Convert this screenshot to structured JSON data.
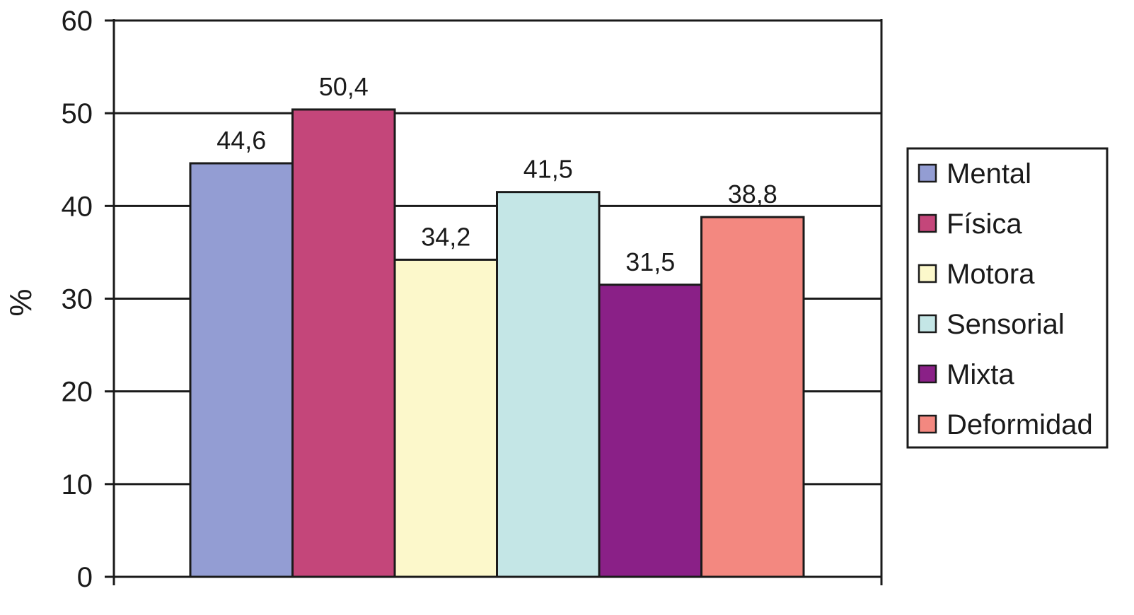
{
  "chart_data": {
    "type": "bar",
    "title": "",
    "xlabel": "",
    "ylabel": "%",
    "ylim": [
      0,
      60
    ],
    "yticks": [
      0,
      10,
      20,
      30,
      40,
      50,
      60
    ],
    "grid": true,
    "legend_position": "right",
    "series": [
      {
        "name": "Mental",
        "value": 44.6,
        "label": "44,6",
        "color": "#939dd3"
      },
      {
        "name": "Física",
        "value": 50.4,
        "label": "50,4",
        "color": "#c4467a"
      },
      {
        "name": "Motora",
        "value": 34.2,
        "label": "34,2",
        "color": "#fcf8cb"
      },
      {
        "name": "Sensorial",
        "value": 41.5,
        "label": "41,5",
        "color": "#c4e6e6"
      },
      {
        "name": "Mixta",
        "value": 31.5,
        "label": "31,5",
        "color": "#8a2087"
      },
      {
        "name": "Deformidad",
        "value": 38.8,
        "label": "38,8",
        "color": "#f38880"
      }
    ]
  }
}
